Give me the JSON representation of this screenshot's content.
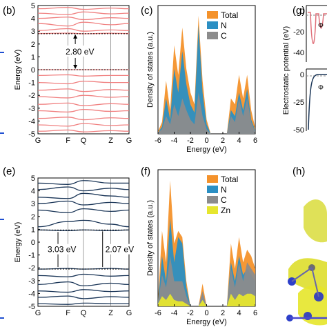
{
  "panels": {
    "b": "(b)",
    "c": "(c)",
    "e": "(e)",
    "f": "(f)",
    "g": "(g)",
    "h": "(h)"
  },
  "chart_data": [
    {
      "id": "b",
      "type": "line",
      "ylabel": "Energy (eV)",
      "ylim": [
        -5,
        5
      ],
      "yticks": [
        -5,
        -4,
        -3,
        -2,
        -1,
        0,
        1,
        2,
        3,
        4,
        5
      ],
      "kpoints": [
        "G",
        "F",
        "Q",
        "Z",
        "G"
      ],
      "band_color": "#f08080",
      "annotation": "2.80 eV",
      "valence": [
        [
          0.0,
          0.0,
          0.0,
          0.0,
          0.0
        ],
        [
          -0.45,
          -0.4,
          -0.5,
          -0.45,
          -0.45
        ],
        [
          -1.0,
          -1.1,
          -0.9,
          -1.0,
          -1.0
        ],
        [
          -1.6,
          -1.5,
          -1.7,
          -1.55,
          -1.6
        ],
        [
          -2.1,
          -2.2,
          -2.0,
          -2.15,
          -2.1
        ],
        [
          -2.7,
          -2.6,
          -2.8,
          -2.65,
          -2.7
        ],
        [
          -3.2,
          -3.3,
          -3.1,
          -3.25,
          -3.2
        ],
        [
          -3.8,
          -3.7,
          -3.9,
          -3.75,
          -3.8
        ],
        [
          -4.3,
          -4.4,
          -4.2,
          -4.35,
          -4.3
        ],
        [
          -4.8,
          -4.7,
          -4.85,
          -4.75,
          -4.8
        ]
      ],
      "conduction": [
        [
          2.82,
          2.85,
          2.8,
          2.84,
          2.82
        ],
        [
          3.05,
          3.2,
          3.0,
          3.1,
          3.05
        ],
        [
          3.6,
          3.4,
          3.7,
          3.5,
          3.6
        ],
        [
          4.0,
          4.1,
          3.9,
          4.05,
          4.0
        ],
        [
          4.4,
          4.3,
          4.5,
          4.35,
          4.4
        ],
        [
          4.75,
          4.85,
          4.7,
          4.8,
          4.75
        ]
      ],
      "reference_lines": [
        0.0,
        2.8
      ]
    },
    {
      "id": "c",
      "type": "area",
      "xlabel": "Energy (eV)",
      "ylabel": "Density of states (a.u.)",
      "xlim": [
        -6,
        6
      ],
      "xticks": [
        -6,
        -4,
        -2,
        0,
        2,
        4,
        6
      ],
      "x": [
        -6,
        -5.5,
        -5,
        -4.5,
        -4,
        -3.5,
        -3,
        -2.5,
        -2,
        -1.5,
        -1,
        -0.5,
        0,
        0.5,
        1,
        1.5,
        2,
        2.5,
        3,
        3.5,
        4,
        4.5,
        5,
        5.5,
        6
      ],
      "series": [
        {
          "name": "Total",
          "color": "#f4922b",
          "values": [
            0.02,
            0.1,
            0.45,
            0.2,
            0.75,
            0.5,
            0.9,
            0.55,
            0.35,
            0.25,
            1.0,
            0.45,
            0.12,
            0,
            0,
            0,
            0,
            0,
            0.3,
            0.25,
            0.5,
            0.3,
            0.5,
            0.2,
            0.05
          ]
        },
        {
          "name": "N",
          "color": "#2b8fc3",
          "values": [
            0.01,
            0.06,
            0.3,
            0.12,
            0.55,
            0.35,
            0.7,
            0.42,
            0.25,
            0.18,
            0.92,
            0.35,
            0.08,
            0,
            0,
            0,
            0,
            0,
            0.2,
            0.15,
            0.35,
            0.2,
            0.38,
            0.12,
            0.03
          ]
        },
        {
          "name": "C",
          "color": "#8c8c8c",
          "values": [
            0.01,
            0.04,
            0.15,
            0.08,
            0.25,
            0.15,
            0.3,
            0.2,
            0.12,
            0.08,
            0.35,
            0.15,
            0.04,
            0,
            0,
            0,
            0,
            0,
            0.15,
            0.1,
            0.3,
            0.15,
            0.3,
            0.1,
            0.02
          ]
        }
      ]
    },
    {
      "id": "e",
      "type": "line",
      "ylabel": "Energy (eV)",
      "ylim": [
        -5,
        5
      ],
      "yticks": [
        -5,
        -4,
        -3,
        -2,
        -1,
        0,
        1,
        2,
        3,
        4,
        5
      ],
      "kpoints": [
        "G",
        "F",
        "Q",
        "Z",
        "G"
      ],
      "band_color": "#1a3557",
      "annotations": [
        "3.03 eV",
        "2.07 eV"
      ],
      "valence": [
        [
          -2.1,
          -2.05,
          -2.1,
          -2.05,
          -2.1
        ],
        [
          -2.6,
          -2.7,
          -2.5,
          -2.65,
          -2.6
        ],
        [
          -3.3,
          -3.1,
          -3.4,
          -3.2,
          -3.3
        ],
        [
          -3.8,
          -3.9,
          -3.7,
          -3.85,
          -3.8
        ],
        [
          -4.3,
          -4.2,
          -4.4,
          -4.25,
          -4.3
        ],
        [
          -4.8,
          -4.85,
          -4.75,
          -4.8,
          -4.8
        ]
      ],
      "conduction": [
        [
          0.95,
          0.9,
          0.95,
          0.9,
          0.95
        ],
        [
          1.2,
          1.6,
          1.7,
          1.4,
          1.2
        ],
        [
          2.5,
          2.3,
          2.6,
          2.4,
          2.5
        ],
        [
          3.0,
          3.2,
          2.9,
          3.1,
          3.0
        ],
        [
          3.5,
          3.4,
          3.8,
          3.6,
          3.5
        ],
        [
          4.1,
          4.3,
          4.0,
          4.2,
          4.1
        ],
        [
          4.6,
          4.5,
          4.8,
          4.6,
          4.6
        ]
      ],
      "reference_lines": [
        0.95,
        -2.1
      ]
    },
    {
      "id": "f",
      "type": "area",
      "xlabel": "Energy (eV)",
      "ylabel": "Density of states (a.u.)",
      "xlim": [
        -6,
        6
      ],
      "xticks": [
        -6,
        -4,
        -2,
        0,
        2,
        4,
        6
      ],
      "x": [
        -6,
        -5.5,
        -5,
        -4.5,
        -4,
        -3.5,
        -3,
        -2.5,
        -2,
        -1.5,
        -1,
        -0.5,
        0,
        0.5,
        1,
        1.5,
        2,
        2.5,
        3,
        3.5,
        4,
        4.5,
        5,
        5.5,
        6
      ],
      "series": [
        {
          "name": "Total",
          "color": "#f4922b",
          "values": [
            0.05,
            0.6,
            0.35,
            1.0,
            0.5,
            0.6,
            0.55,
            0.2,
            0,
            0,
            0,
            0.18,
            0,
            0,
            0,
            0,
            0,
            0,
            0.5,
            0.3,
            0.55,
            0.35,
            0.45,
            0.4,
            0.3
          ]
        },
        {
          "name": "N",
          "color": "#2b8fc3",
          "values": [
            0.03,
            0.4,
            0.2,
            0.7,
            0.35,
            0.55,
            0.5,
            0.15,
            0,
            0,
            0,
            0.1,
            0,
            0,
            0,
            0,
            0,
            0,
            0.35,
            0.2,
            0.4,
            0.25,
            0.3,
            0.25,
            0.2
          ]
        },
        {
          "name": "C",
          "color": "#8c8c8c",
          "values": [
            0.02,
            0.25,
            0.15,
            0.4,
            0.2,
            0.2,
            0.2,
            0.08,
            0,
            0,
            0,
            0.12,
            0,
            0,
            0,
            0,
            0,
            0,
            0.3,
            0.15,
            0.35,
            0.2,
            0.35,
            0.3,
            0.25
          ]
        },
        {
          "name": "Zn",
          "color": "#e6e62e",
          "values": [
            0.02,
            0.08,
            0.05,
            0.1,
            0.05,
            0.04,
            0.04,
            0.02,
            0,
            0,
            0,
            0.05,
            0,
            0,
            0,
            0,
            0,
            0,
            0.1,
            0.05,
            0.1,
            0.08,
            0.1,
            0.1,
            0.08
          ]
        }
      ]
    },
    {
      "id": "g",
      "type": "line",
      "ylabel": "Electrostatic potential (eV)",
      "upper_ticks": [
        0,
        -20,
        -40
      ],
      "lower_ticks": [
        0,
        -25,
        -50
      ],
      "upper_label": "Φ",
      "lower_label": "Φ",
      "upper_color": "#e0707a",
      "lower_color": "#1a3557"
    }
  ]
}
